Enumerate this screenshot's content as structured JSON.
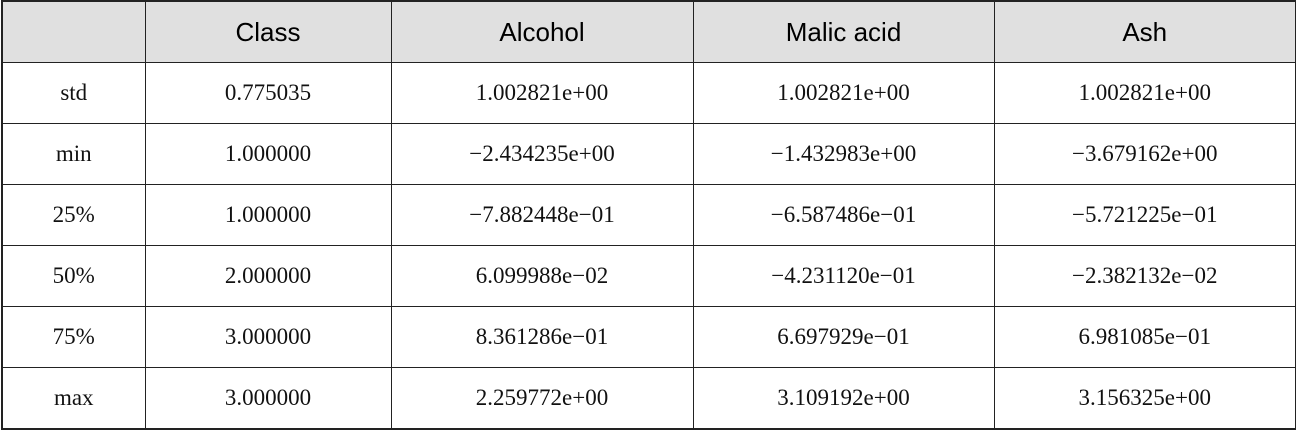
{
  "table": {
    "header": [
      "Class",
      "Alcohol",
      "Malic acid",
      "Ash"
    ],
    "rows": [
      [
        "std",
        "0.775035",
        "1.002821e+00",
        "1.002821e+00",
        "1.002821e+00"
      ],
      [
        "min",
        "1.000000",
        "−2.434235e+00",
        "−1.432983e+00",
        "−3.679162e+00"
      ],
      [
        "25%",
        "1.000000",
        "−7.882448e−01",
        "−6.587486e−01",
        "−5.721225e−01"
      ],
      [
        "50%",
        "2.000000",
        "6.099988e−02",
        "−4.231120e−01",
        "−2.382132e−02"
      ],
      [
        "75%",
        "3.000000",
        "8.361286e−01",
        "6.697929e−01",
        "6.981085e−01"
      ],
      [
        "max",
        "3.000000",
        "2.259772e+00",
        "3.109192e+00",
        "3.156325e+00"
      ]
    ]
  }
}
